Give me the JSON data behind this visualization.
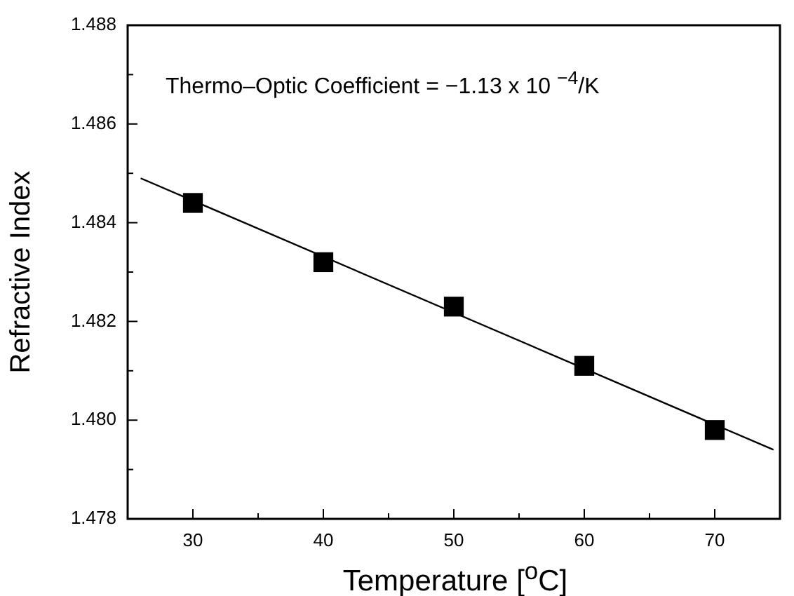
{
  "chart_data": {
    "type": "scatter",
    "xlabel": "Temperature [$^{o}$C]",
    "ylabel": "Refractive Index",
    "annotations": [
      "Thermo–Optic Coefficient = −1.13 x 10 $^{−4}$/K"
    ],
    "xlim": [
      25,
      75
    ],
    "xticks": [
      30,
      {
        "value": 35,
        "label": null
      },
      40,
      {
        "value": 45,
        "label": null
      },
      50,
      {
        "value": 55,
        "label": null
      },
      60,
      {
        "value": 65,
        "label": null
      },
      70
    ],
    "ylim": [
      1.478,
      1.488
    ],
    "yticks": [
      1.478,
      {
        "value": 1.479,
        "label": null
      },
      {
        "value": 1.48,
        "label": "1.480"
      },
      {
        "value": 1.481,
        "label": null
      },
      1.482,
      {
        "value": 1.483,
        "label": null
      },
      1.484,
      {
        "value": 1.485,
        "label": null
      },
      1.486,
      {
        "value": 1.487,
        "label": null
      },
      1.488
    ],
    "grid": false,
    "legend": false,
    "series": [
      {
        "type": "scatter",
        "color": "#000000",
        "marker": "square",
        "x": [
          30,
          40,
          50,
          60,
          70
        ],
        "values": [
          1.4844,
          1.4832,
          1.4823,
          1.4811,
          1.4798
        ]
      },
      {
        "type": "line",
        "color": "#000000",
        "marker": "none",
        "line_style": "solid",
        "x": [
          26,
          74.5
        ],
        "values": [
          1.4849,
          1.4794
        ]
      }
    ]
  }
}
